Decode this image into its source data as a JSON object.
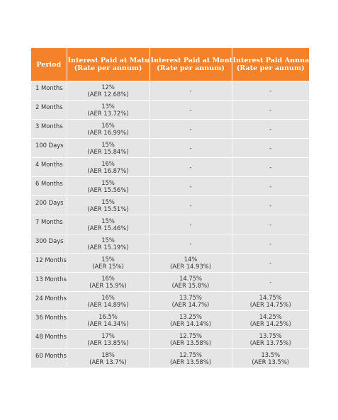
{
  "header": {
    "period": "Period",
    "maturity": [
      "Interest Paid at Maturity",
      "(Rate per annum)"
    ],
    "monthly": [
      "Interest Paid at Monthly",
      "(Rate per annum)"
    ],
    "annually": [
      "Interest Paid Annually",
      "(Rate per annum)"
    ]
  },
  "rows": [
    {
      "period": "1 Months",
      "maturity": [
        "12%",
        "(AER 12.68%)"
      ],
      "monthly": [
        "-"
      ],
      "annually": [
        "-"
      ]
    },
    {
      "period": "2 Months",
      "maturity": [
        "13%",
        "(AER 13.72%)"
      ],
      "monthly": [
        "-"
      ],
      "annually": [
        "-"
      ]
    },
    {
      "period": "3 Months",
      "maturity": [
        "16%",
        "(AER 16.99%)"
      ],
      "monthly": [
        "-"
      ],
      "annually": [
        "-"
      ]
    },
    {
      "period": "100 Days",
      "maturity": [
        "15%",
        "(AER 15.84%)"
      ],
      "monthly": [
        "-"
      ],
      "annually": [
        "-"
      ]
    },
    {
      "period": "4 Months",
      "maturity": [
        "16%",
        "(AER 16.87%)"
      ],
      "monthly": [
        "-"
      ],
      "annually": [
        "-"
      ]
    },
    {
      "period": "6 Months",
      "maturity": [
        "15%",
        "(AER 15.56%)"
      ],
      "monthly": [
        "-"
      ],
      "annually": [
        "-"
      ]
    },
    {
      "period": "200 Days",
      "maturity": [
        "15%",
        "(AER 15.51%)"
      ],
      "monthly": [
        "-"
      ],
      "annually": [
        "-"
      ]
    },
    {
      "period": "7 Months",
      "maturity": [
        "15%",
        "(AER 15.46%)"
      ],
      "monthly": [
        "-"
      ],
      "annually": [
        "-"
      ]
    },
    {
      "period": "300 Days",
      "maturity": [
        "15%",
        "(AER 15.19%)"
      ],
      "monthly": [
        "-"
      ],
      "annually": [
        "-"
      ]
    },
    {
      "period": "12 Months",
      "maturity": [
        "15%",
        "(AER 15%)"
      ],
      "monthly": [
        "14%",
        "(AER 14.93%)"
      ],
      "annually": [
        "-"
      ]
    },
    {
      "period": "13 Months",
      "maturity": [
        "16%",
        "(AER 15.9%)"
      ],
      "monthly": [
        "14.75%",
        "(AER 15.8%)"
      ],
      "annually": [
        "-"
      ]
    },
    {
      "period": "24 Months",
      "maturity": [
        "16%",
        "(AER 14.89%)"
      ],
      "monthly": [
        "13.75%",
        "(AER 14.7%)"
      ],
      "annually": [
        "14.75%",
        "(AER 14.75%)"
      ]
    },
    {
      "period": "36 Months",
      "maturity": [
        "16.5%",
        "(AER 14.34%)"
      ],
      "monthly": [
        "13.25%",
        "(AER 14.14%)"
      ],
      "annually": [
        "14.25%",
        "(AER 14.25%)"
      ]
    },
    {
      "period": "48 Months",
      "maturity": [
        "17%",
        "(AER 13.85%)"
      ],
      "monthly": [
        "12.75%",
        "(AER 13.58%)"
      ],
      "annually": [
        "13.75%",
        "(AER 13.75%)"
      ]
    },
    {
      "period": "60 Months",
      "maturity": [
        "18%",
        "(AER 13.7%)"
      ],
      "monthly": [
        "12.75%",
        "(AER 13.58%)"
      ],
      "annually": [
        "13.5%",
        "(AER 13.5%)"
      ]
    }
  ],
  "colors": {
    "header_bg": "#f4822a",
    "header_text": "#ffffff",
    "cell_bg": "#e5e5e5",
    "cell_text": "#333333"
  }
}
